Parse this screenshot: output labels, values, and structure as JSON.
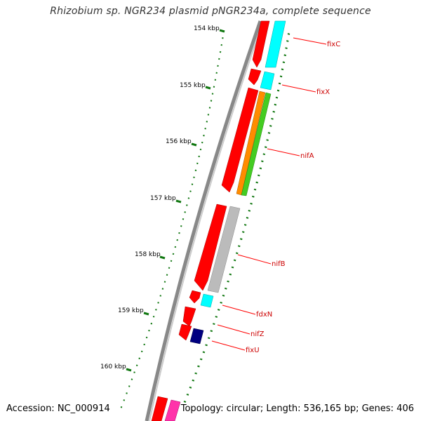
{
  "title": "Rhizobium sp. NGR234 plasmid pNGR234a, complete sequence",
  "footer": {
    "accession": "Accession: NC_000914",
    "info": "Topology: circular; Length: 536,165 bp; Genes: 406"
  },
  "ticks": [
    "154 kbp",
    "155 kbp",
    "156 kbp",
    "157 kbp",
    "158 kbp",
    "159 kbp",
    "160 kbp"
  ],
  "genes": [
    "fixC",
    "fixX",
    "nifA",
    "nifB",
    "fdxN",
    "nifZ",
    "fixU"
  ],
  "colors": {
    "backbone": "#888888",
    "gene": "#ff0000",
    "label_line": "#ff0000",
    "tick": "#117711",
    "cyan": "#00ffff",
    "orange": "#ff8c00",
    "green": "#44cc22",
    "gray": "#bbbbbb",
    "navy": "#000080",
    "magenta": "#ff33aa"
  }
}
